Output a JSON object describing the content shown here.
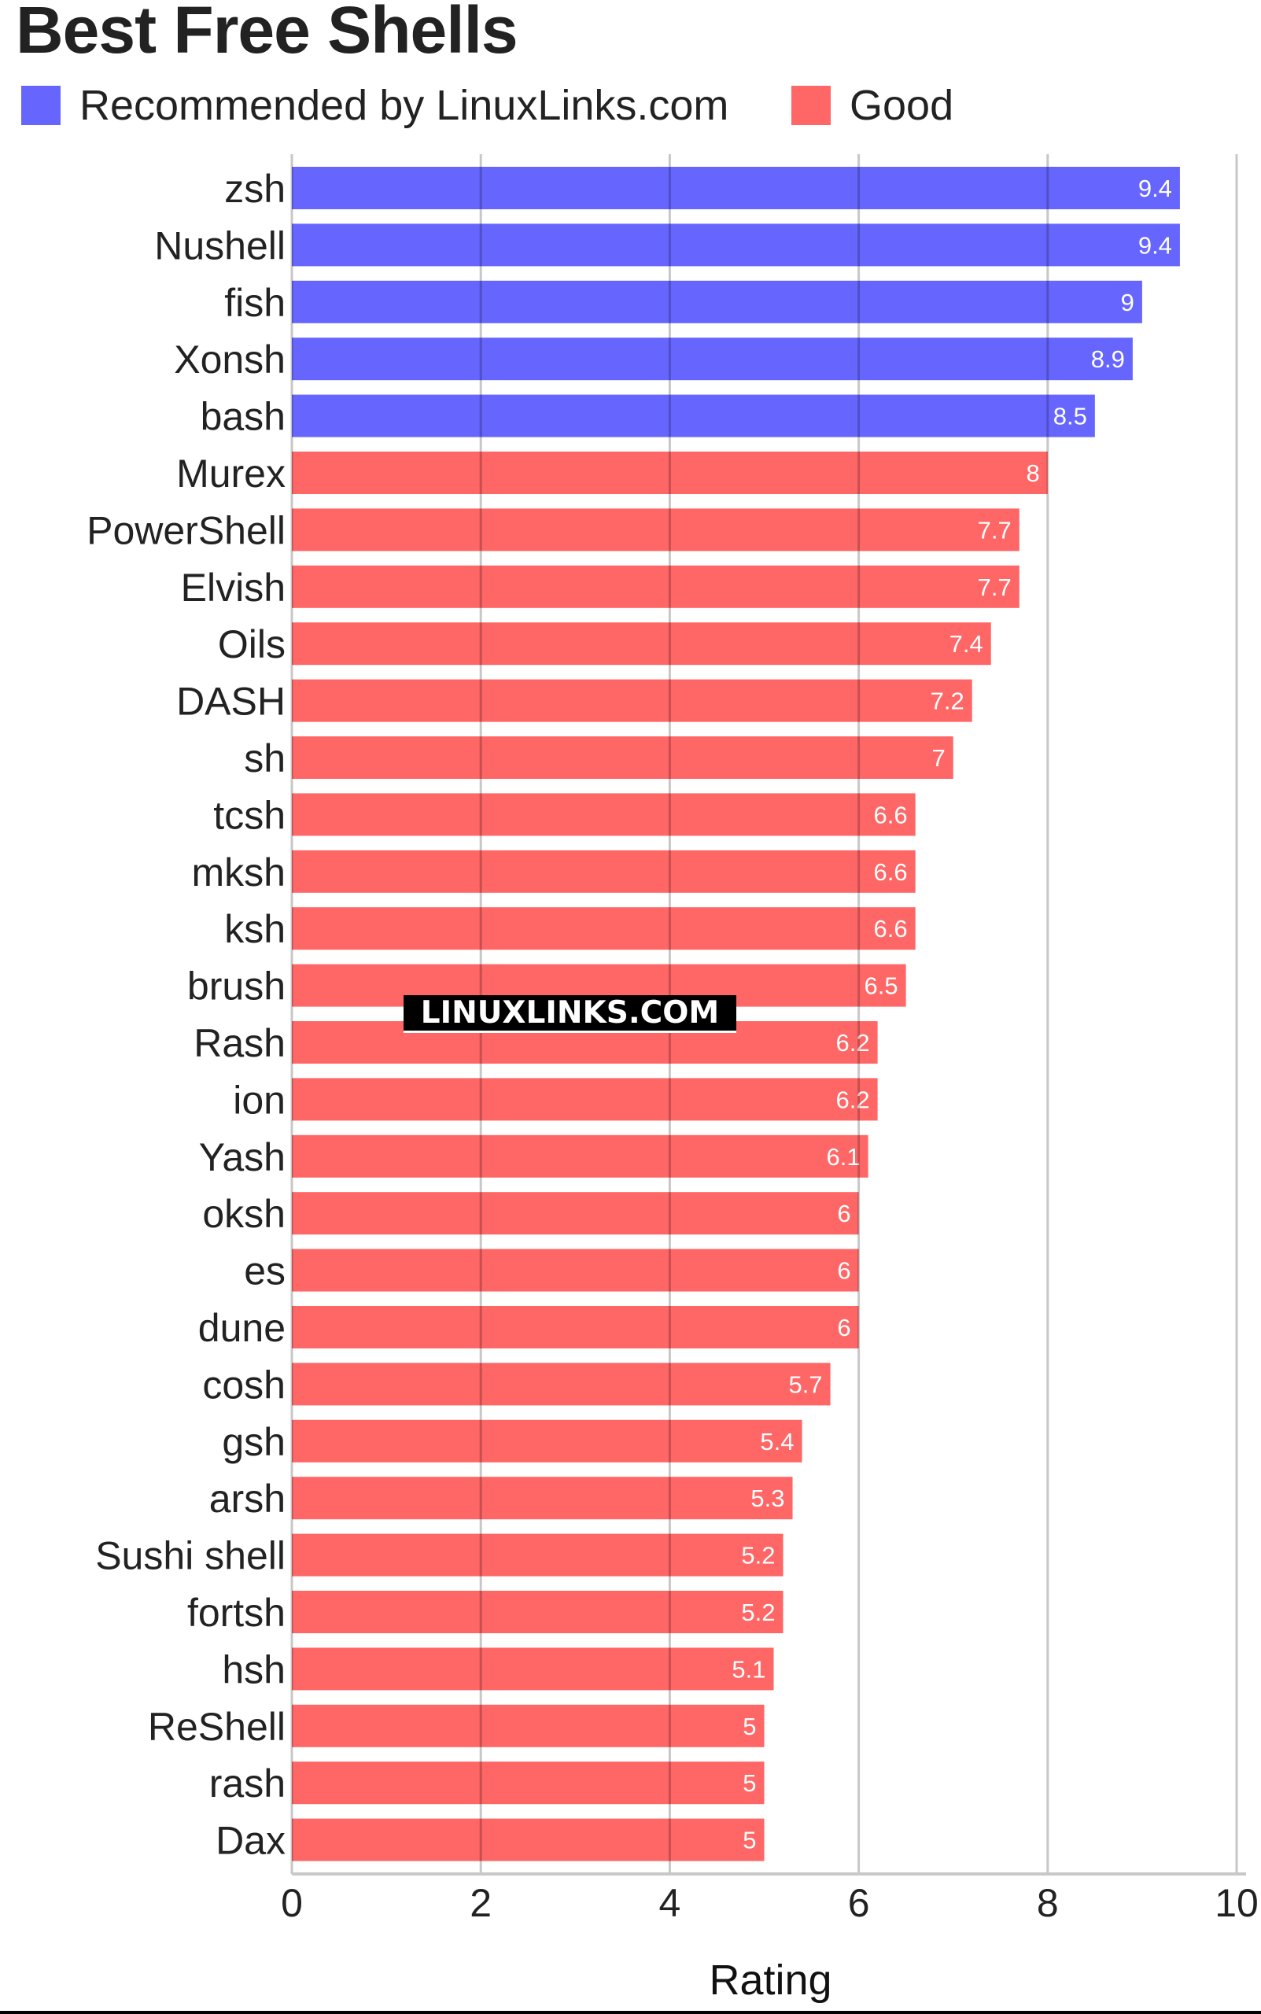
{
  "chart_data": {
    "type": "bar",
    "orientation": "horizontal",
    "title": "Best Free Shells",
    "xlabel": "Rating",
    "xlim": [
      0,
      10
    ],
    "xticks": [
      "0",
      "2",
      "4",
      "6",
      "8",
      "10"
    ],
    "grid": true,
    "legend_position": "top-left",
    "legend": [
      {
        "name": "Recommended by LinuxLinks.com",
        "color": "#6666ff"
      },
      {
        "name": "Good",
        "color": "#ff6666"
      }
    ],
    "categories": [
      "zsh",
      "Nushell",
      "fish",
      "Xonsh",
      "bash",
      "Murex",
      "PowerShell",
      "Elvish",
      "Oils",
      "DASH",
      "sh",
      "tcsh",
      "mksh",
      "ksh",
      "brush",
      "Rash",
      "ion",
      "Yash",
      "oksh",
      "es",
      "dune",
      "cosh",
      "gsh",
      "arsh",
      "Sushi shell",
      "fortsh",
      "hsh",
      "ReShell",
      "rash",
      "Dax"
    ],
    "values": [
      9.4,
      9.4,
      9,
      8.9,
      8.5,
      8,
      7.7,
      7.7,
      7.4,
      7.2,
      7,
      6.6,
      6.6,
      6.6,
      6.5,
      6.2,
      6.2,
      6.1,
      6,
      6,
      6,
      5.7,
      5.4,
      5.3,
      5.2,
      5.2,
      5.1,
      5,
      5,
      5
    ],
    "series_index": [
      0,
      0,
      0,
      0,
      0,
      1,
      1,
      1,
      1,
      1,
      1,
      1,
      1,
      1,
      1,
      1,
      1,
      1,
      1,
      1,
      1,
      1,
      1,
      1,
      1,
      1,
      1,
      1,
      1,
      1
    ]
  },
  "watermark": "LINUXLINKS.COM"
}
